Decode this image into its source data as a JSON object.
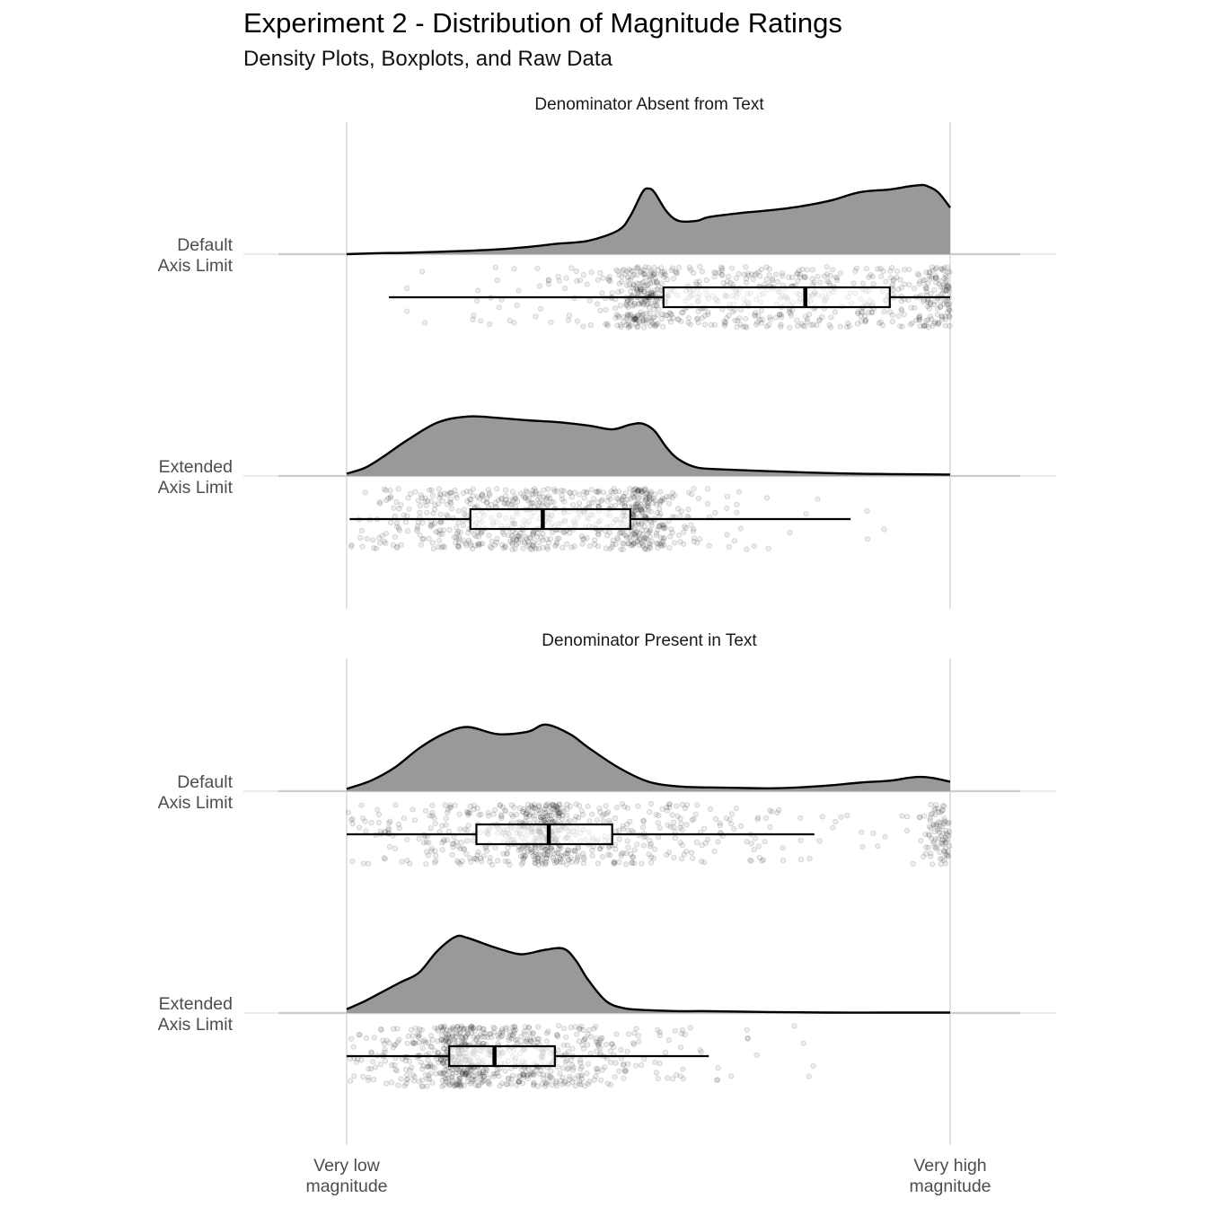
{
  "chart_data": {
    "type": "raincloud",
    "title": "Experiment 2 - Distribution of Magnitude Ratings",
    "subtitle": "Density Plots, Boxplots, and Raw Data",
    "x_tick_labels": [
      "Very low\nmagnitude",
      "Very high\nmagnitude"
    ],
    "xlim": [
      0,
      1
    ],
    "grid": "vertical-major",
    "fill_color": "#999999",
    "point_color": "#000000",
    "panels": [
      {
        "title": "Denominator Absent from Text",
        "groups": [
          {
            "label": "Default\nAxis Limit",
            "box": {
              "whisker_low": 0.07,
              "q1": 0.525,
              "median": 0.76,
              "q3": 0.9,
              "whisker_high": 1.0
            },
            "density_x": [
              0,
              0.05,
              0.1,
              0.15,
              0.2,
              0.25,
              0.3,
              0.35,
              0.4,
              0.45,
              0.47,
              0.49,
              0.5,
              0.51,
              0.53,
              0.55,
              0.58,
              0.6,
              0.65,
              0.7,
              0.75,
              0.8,
              0.85,
              0.9,
              0.93,
              0.95,
              0.96,
              0.98,
              1.0
            ],
            "density_y": [
              0,
              0.02,
              0.03,
              0.05,
              0.07,
              0.1,
              0.15,
              0.22,
              0.28,
              0.5,
              0.8,
              1.3,
              1.38,
              1.3,
              0.9,
              0.7,
              0.7,
              0.78,
              0.86,
              0.92,
              1.0,
              1.12,
              1.3,
              1.36,
              1.42,
              1.45,
              1.44,
              1.3,
              0.98
            ],
            "points": {
              "n": 800,
              "center": 0.7,
              "spread": 0.2,
              "range": [
                0.07,
                1.0
              ],
              "cluster_at": 0.49,
              "pile_at_max": true
            }
          },
          {
            "label": "Extended\nAxis Limit",
            "box": {
              "whisker_low": 0.005,
              "q1": 0.205,
              "median": 0.325,
              "q3": 0.47,
              "whisker_high": 0.835
            },
            "density_x": [
              0,
              0.03,
              0.06,
              0.1,
              0.15,
              0.2,
              0.25,
              0.3,
              0.35,
              0.4,
              0.44,
              0.47,
              0.49,
              0.51,
              0.53,
              0.55,
              0.58,
              0.62,
              0.7,
              0.8,
              0.9,
              1.0
            ],
            "density_y": [
              0.05,
              0.17,
              0.4,
              0.75,
              1.12,
              1.25,
              1.22,
              1.17,
              1.13,
              1.06,
              0.98,
              1.08,
              1.1,
              0.95,
              0.6,
              0.35,
              0.18,
              0.14,
              0.1,
              0.06,
              0.04,
              0.03
            ],
            "points": {
              "n": 800,
              "center": 0.3,
              "spread": 0.16,
              "range": [
                0.005,
                1.0
              ],
              "cluster_at": 0.49,
              "pile_at_max": false
            }
          }
        ]
      },
      {
        "title": "Denominator Present in Text",
        "groups": [
          {
            "label": "Default\nAxis Limit",
            "box": {
              "whisker_low": 0.0,
              "q1": 0.215,
              "median": 0.335,
              "q3": 0.44,
              "whisker_high": 0.775
            },
            "density_x": [
              0,
              0.04,
              0.08,
              0.12,
              0.16,
              0.2,
              0.25,
              0.3,
              0.33,
              0.37,
              0.4,
              0.45,
              0.5,
              0.55,
              0.6,
              0.65,
              0.7,
              0.75,
              0.8,
              0.85,
              0.9,
              0.93,
              0.95,
              0.97,
              1.0
            ],
            "density_y": [
              0.05,
              0.22,
              0.5,
              0.9,
              1.2,
              1.35,
              1.2,
              1.25,
              1.4,
              1.2,
              0.92,
              0.5,
              0.2,
              0.1,
              0.08,
              0.07,
              0.06,
              0.08,
              0.12,
              0.18,
              0.22,
              0.28,
              0.3,
              0.28,
              0.2
            ],
            "points": {
              "n": 800,
              "center": 0.33,
              "spread": 0.2,
              "range": [
                0.0,
                1.0
              ],
              "cluster_at": 0.33,
              "pile_at_max": true
            }
          },
          {
            "label": "Extended\nAxis Limit",
            "box": {
              "whisker_low": 0.0,
              "q1": 0.17,
              "median": 0.245,
              "q3": 0.345,
              "whisker_high": 0.6
            },
            "density_x": [
              0,
              0.03,
              0.06,
              0.09,
              0.12,
              0.15,
              0.18,
              0.2,
              0.24,
              0.28,
              0.3,
              0.33,
              0.36,
              0.38,
              0.4,
              0.43,
              0.46,
              0.5,
              0.55,
              0.6,
              0.7,
              0.8,
              0.9,
              1.0
            ],
            "density_y": [
              0.08,
              0.25,
              0.45,
              0.65,
              0.85,
              1.3,
              1.6,
              1.58,
              1.4,
              1.25,
              1.25,
              1.33,
              1.35,
              1.1,
              0.7,
              0.25,
              0.1,
              0.06,
              0.04,
              0.04,
              0.02,
              0.01,
              0.01,
              0.01
            ],
            "points": {
              "n": 800,
              "center": 0.25,
              "spread": 0.13,
              "range": [
                0.0,
                0.9
              ],
              "cluster_at": 0.19,
              "pile_at_max": false
            }
          }
        ]
      }
    ]
  }
}
